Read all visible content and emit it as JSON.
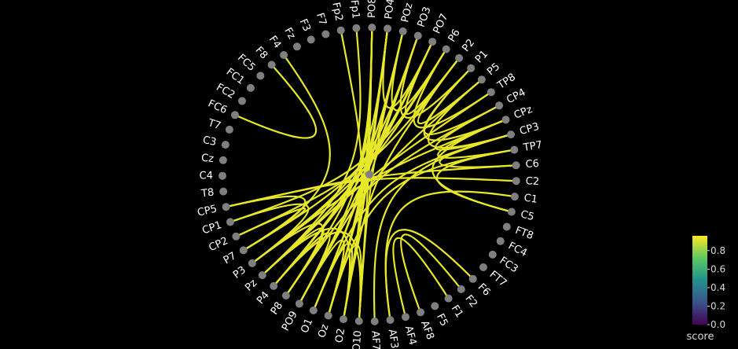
{
  "nodes": [
    "PO8",
    "PO4",
    "POz",
    "PO3",
    "PO7",
    "P6",
    "P2",
    "P1",
    "P5",
    "TP8",
    "CP4",
    "CPz",
    "CP3",
    "TP7",
    "C6",
    "C2",
    "C1",
    "C5",
    "FT8",
    "FC4",
    "FC3",
    "FT7",
    "F6",
    "F2",
    "F1",
    "F5",
    "AF8",
    "AF4",
    "AF3",
    "AF7",
    "O10",
    "O2",
    "Oz",
    "O1",
    "PO9",
    "P8",
    "P4",
    "Pz",
    "P3",
    "P7",
    "CP2",
    "CP1",
    "CP5",
    "T8",
    "C4",
    "Cz",
    "C3",
    "T7",
    "FC6",
    "FC2",
    "FC1",
    "FC5",
    "F8",
    "F4",
    "Fz",
    "F3",
    "F7",
    "Fp2",
    "Fp1"
  ],
  "edges": [
    [
      "Fp1",
      "Pz"
    ],
    [
      "Fp2",
      "O2"
    ],
    [
      "PO8",
      "Oz"
    ],
    [
      "PO8",
      "O10"
    ],
    [
      "PO8",
      "O2"
    ],
    [
      "PO8",
      "P8"
    ],
    [
      "PO8",
      "PO9"
    ],
    [
      "PO4",
      "O1"
    ],
    [
      "PO4",
      "P4"
    ],
    [
      "PO4",
      "Oz"
    ],
    [
      "PO4",
      "O2"
    ],
    [
      "POz",
      "P4"
    ],
    [
      "POz",
      "O10"
    ],
    [
      "POz",
      "O1"
    ],
    [
      "PO3",
      "P3"
    ],
    [
      "PO3",
      "PO9"
    ],
    [
      "PO3",
      "Oz"
    ],
    [
      "PO7",
      "P4"
    ],
    [
      "PO7",
      "Pz"
    ],
    [
      "PO7",
      "P7"
    ],
    [
      "P6",
      "CP1"
    ],
    [
      "P6",
      "P3"
    ],
    [
      "P2",
      "CP2"
    ],
    [
      "P2",
      "O2"
    ],
    [
      "P5",
      "PO9"
    ],
    [
      "TP8",
      "Pz"
    ],
    [
      "CP4",
      "P8"
    ],
    [
      "CPz",
      "P3"
    ],
    [
      "CP3",
      "O1"
    ],
    [
      "TP7",
      "Oz"
    ],
    [
      "C6",
      "CP5"
    ],
    [
      "C2",
      "CP5"
    ],
    [
      "F8",
      "FC6"
    ],
    [
      "F4",
      "P7"
    ],
    [
      "F6",
      "AF3"
    ],
    [
      "F2",
      "AF8"
    ],
    [
      "F1",
      "AF4"
    ],
    [
      "P2",
      "P5"
    ],
    [
      "P6",
      "TP8"
    ],
    [
      "P1",
      "CPz"
    ],
    [
      "CPz",
      "TP7"
    ],
    [
      "CP4",
      "CP3"
    ],
    [
      "CP3",
      "C6"
    ],
    [
      "TP7",
      "C5"
    ],
    [
      "CPz",
      "C5"
    ],
    [
      "PO7",
      "P2"
    ],
    [
      "PO3",
      "P1"
    ],
    [
      "P1",
      "CP4"
    ],
    [
      "P5",
      "CP3"
    ],
    [
      "POz",
      "P6"
    ],
    [
      "PO4",
      "PO7"
    ],
    [
      "CP5",
      "P7"
    ],
    [
      "CP1",
      "P3"
    ],
    [
      "CP2",
      "P7"
    ],
    [
      "Pz",
      "P8"
    ],
    [
      "P4",
      "PO9"
    ],
    [
      "PO9",
      "Oz"
    ],
    [
      "P3",
      "P8"
    ],
    [
      "O1",
      "O2"
    ],
    [
      "O10",
      "P4"
    ],
    [
      "O2",
      "Pz"
    ],
    [
      "Oz",
      "O10"
    ],
    [
      "AF7",
      "CP3"
    ],
    [
      "AF3",
      "C1"
    ]
  ],
  "node_color": "#7f7f7f",
  "edge_color": "#e8e82a",
  "colorbar": {
    "title": "score",
    "ticks": [
      "0.0",
      "0.2",
      "0.4",
      "0.6",
      "0.8"
    ],
    "colors": [
      "#440154",
      "#3b528b",
      "#21918c",
      "#5ec962",
      "#fde725"
    ]
  }
}
